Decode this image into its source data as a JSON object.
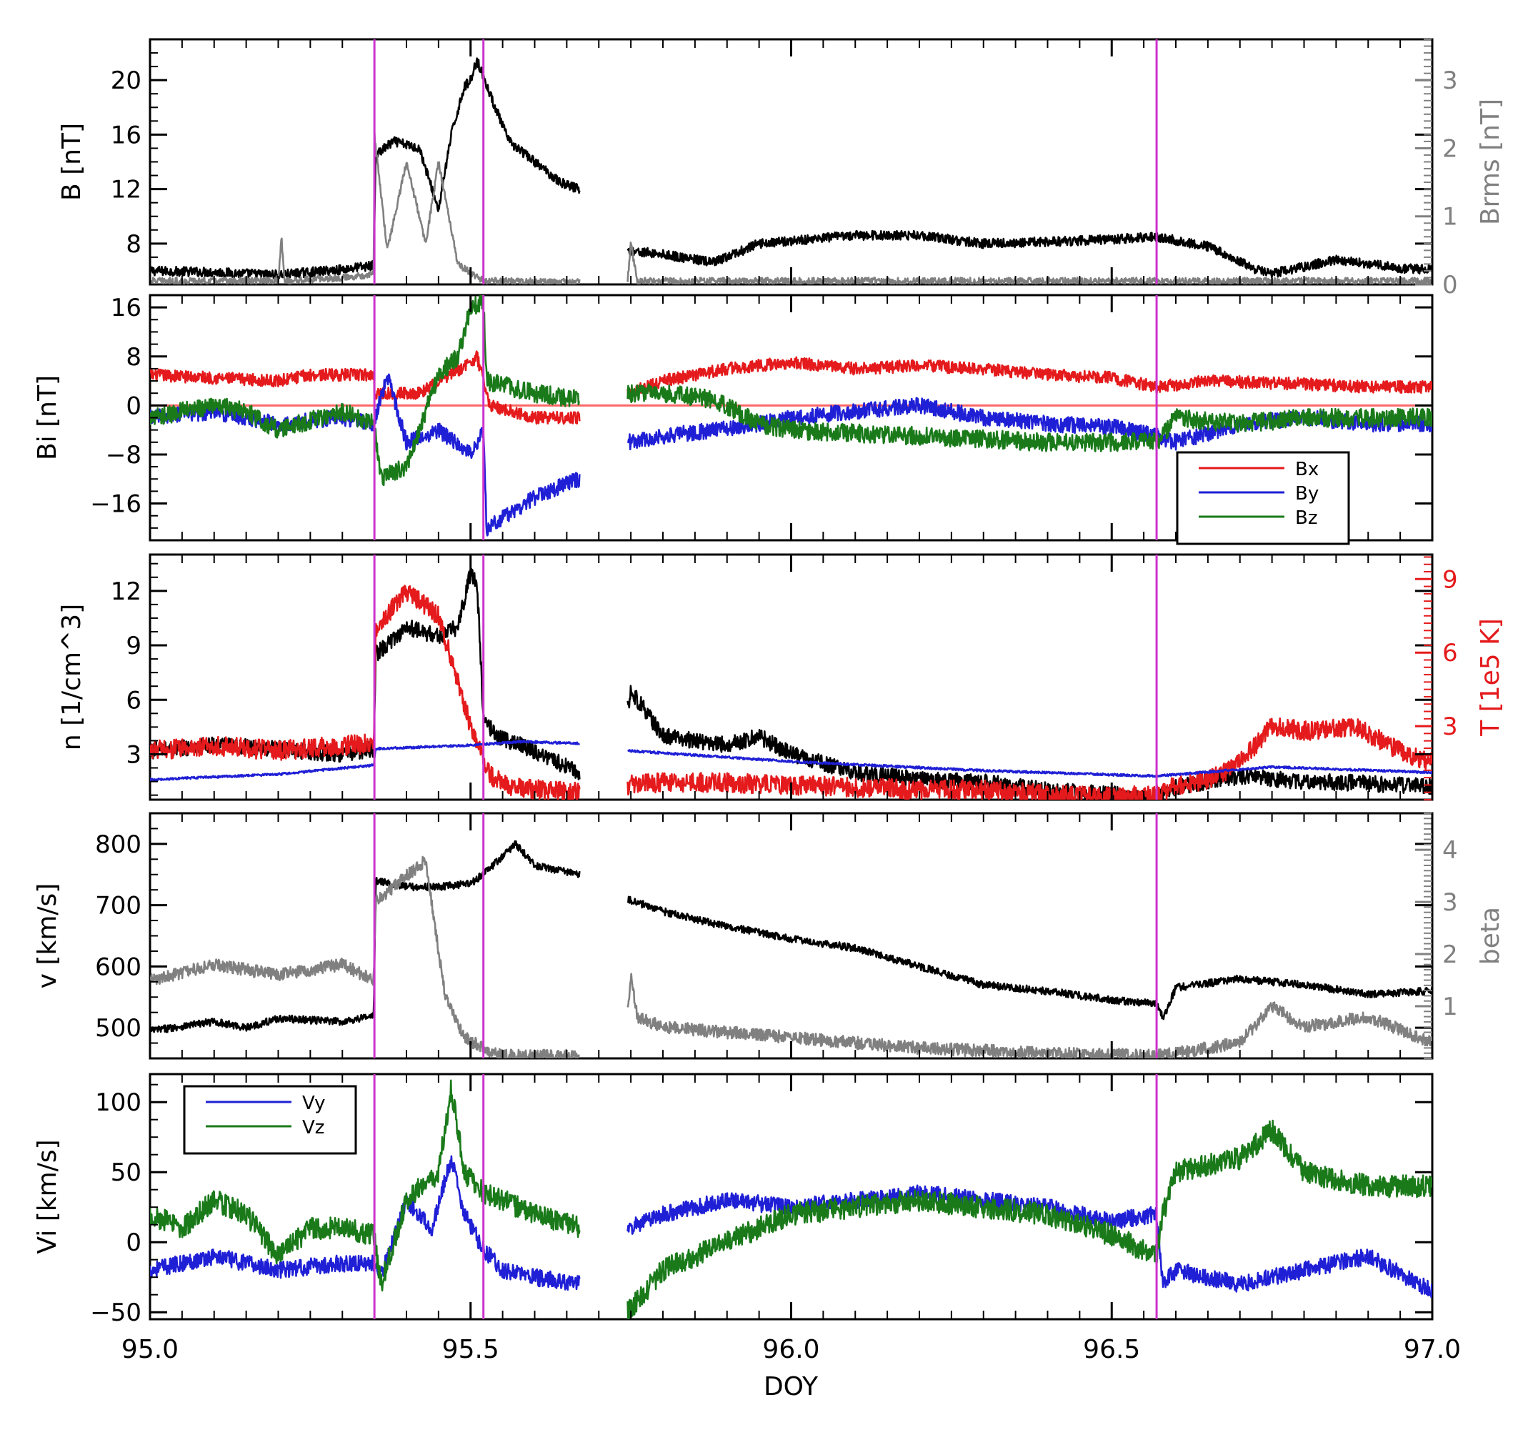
{
  "chart_data": {
    "type": "line",
    "xlabel": "DOY",
    "x_ticks": [
      "95.0",
      "95.5",
      "96.0",
      "96.5",
      "97.0"
    ],
    "xlim": [
      95.0,
      97.0
    ],
    "data_gap": [
      95.67,
      95.745
    ],
    "boundaries": [
      95.35,
      95.52,
      96.57
    ],
    "boundary_color": "#cc33cc",
    "panels": [
      {
        "ylabel": "B [nT]",
        "ylim": [
          5,
          23
        ],
        "y_ticks": [
          "8",
          "12",
          "16",
          "20"
        ],
        "right_axis": {
          "label": "Brms [nT]",
          "color": "#808080",
          "ylim": [
            0,
            3.6
          ],
          "ticks": [
            "0",
            "1",
            "2",
            "3"
          ]
        },
        "legend": null,
        "series": [
          {
            "color": "#000000",
            "axis": "left",
            "noise": 0.35,
            "x": [
              95.0,
              95.1,
              95.2,
              95.3,
              95.349,
              95.352,
              95.38,
              95.42,
              95.45,
              95.47,
              95.49,
              95.5,
              95.51,
              95.53,
              95.56,
              95.6,
              95.64,
              95.67,
              95.745,
              95.8,
              95.88,
              95.95,
              96.1,
              96.2,
              96.3,
              96.45,
              96.57,
              96.65,
              96.73,
              96.75,
              96.85,
              96.95,
              97.0
            ],
            "y": [
              6.0,
              5.9,
              5.7,
              6.1,
              6.4,
              14.5,
              15.5,
              15.0,
              10.5,
              16.0,
              19.5,
              20.0,
              21.5,
              19.0,
              15.5,
              14.0,
              12.5,
              12.0,
              7.5,
              7.2,
              6.6,
              8.0,
              8.6,
              8.6,
              8.0,
              8.2,
              8.5,
              7.8,
              6.0,
              5.8,
              6.8,
              6.2,
              6.1
            ]
          },
          {
            "color": "#808080",
            "axis": "right",
            "noise": 0.05,
            "x": [
              95.0,
              95.2,
              95.205,
              95.21,
              95.3,
              95.349,
              95.35,
              95.37,
              95.4,
              95.43,
              95.45,
              95.48,
              95.52,
              95.67,
              95.745,
              95.75,
              95.76,
              97.0
            ],
            "y": [
              0.05,
              0.05,
              0.7,
              0.05,
              0.1,
              0.15,
              2.2,
              0.5,
              1.8,
              0.6,
              1.8,
              0.3,
              0.05,
              0.03,
              0.05,
              0.6,
              0.05,
              0.05
            ]
          }
        ]
      },
      {
        "ylabel": "Bi [nT]",
        "ylim": [
          -22,
          18
        ],
        "y_ticks": [
          "-16",
          "-8",
          "0",
          "8",
          "16"
        ],
        "right_axis": null,
        "legend": {
          "position": "bottom-right",
          "entries": [
            {
              "label": "Bx",
              "color": "#e41a1c"
            },
            {
              "label": "By",
              "color": "#1f1fd6"
            },
            {
              "label": "Bz",
              "color": "#1a7a1a"
            }
          ]
        },
        "zero_line_color": "#ff6666",
        "series": [
          {
            "color": "#e41a1c",
            "noise": 1.0,
            "x": [
              95.0,
              95.1,
              95.2,
              95.25,
              95.349,
              95.35,
              95.42,
              95.5,
              95.51,
              95.53,
              95.6,
              95.67,
              95.745,
              95.8,
              95.9,
              96.0,
              96.1,
              96.2,
              96.3,
              96.4,
              96.5,
              96.57,
              96.65,
              96.8,
              96.9,
              97.0
            ],
            "y": [
              5.0,
              4.5,
              4.0,
              5.0,
              5.0,
              2.0,
              2.0,
              7.0,
              8.0,
              0.0,
              -2.0,
              -2.0,
              2.0,
              4.0,
              6.0,
              7.0,
              6.0,
              6.5,
              6.0,
              5.0,
              4.5,
              3.0,
              4.0,
              3.5,
              3.0,
              3.0
            ]
          },
          {
            "color": "#1f1fd6",
            "noise": 1.3,
            "x": [
              95.0,
              95.1,
              95.2,
              95.3,
              95.349,
              95.37,
              95.4,
              95.45,
              95.5,
              95.52,
              95.525,
              95.6,
              95.67,
              95.745,
              95.8,
              95.88,
              95.95,
              96.0,
              96.1,
              96.2,
              96.3,
              96.4,
              96.5,
              96.57,
              96.6,
              96.7,
              96.8,
              96.9,
              97.0
            ],
            "y": [
              -2.0,
              -1.0,
              -3.0,
              -2.0,
              -3.0,
              5.0,
              -6.0,
              -4.0,
              -8.0,
              -4.0,
              -20.0,
              -15.0,
              -12.0,
              -6.0,
              -5.0,
              -4.0,
              -3.0,
              -2.0,
              -1.0,
              0.0,
              -2.0,
              -3.0,
              -3.5,
              -5.0,
              -6.0,
              -3.0,
              -2.0,
              -3.0,
              -3.0
            ]
          },
          {
            "color": "#1a7a1a",
            "noise": 1.5,
            "x": [
              95.0,
              95.1,
              95.15,
              95.2,
              95.3,
              95.349,
              95.36,
              95.4,
              95.45,
              95.48,
              95.5,
              95.52,
              95.525,
              95.6,
              95.67,
              95.745,
              95.8,
              95.88,
              95.95,
              96.0,
              96.2,
              96.4,
              96.57,
              96.6,
              96.7,
              96.8,
              96.9,
              97.0
            ],
            "y": [
              -2.0,
              0.0,
              -1.0,
              -4.0,
              -1.0,
              -3.0,
              -12.0,
              -10.0,
              5.0,
              8.0,
              16.0,
              17.0,
              4.0,
              2.0,
              1.0,
              2.0,
              2.0,
              1.0,
              -3.0,
              -4.0,
              -5.0,
              -6.0,
              -6.0,
              -2.0,
              -3.0,
              -2.0,
              -2.0,
              -2.0
            ]
          }
        ]
      },
      {
        "ylabel": "n [1/cm^3]",
        "ylim": [
          0.5,
          14
        ],
        "y_ticks": [
          "3",
          "6",
          "9",
          "12"
        ],
        "right_axis": {
          "label": "T [1e5 K]",
          "color": "#e41a1c",
          "ylim": [
            0,
            10
          ],
          "ticks": [
            "3",
            "6",
            "9"
          ]
        },
        "legend": null,
        "series": [
          {
            "color": "#000000",
            "axis": "left",
            "noise": 0.45,
            "x": [
              95.0,
              95.1,
              95.2,
              95.3,
              95.349,
              95.352,
              95.4,
              95.45,
              95.48,
              95.5,
              95.51,
              95.52,
              95.54,
              95.58,
              95.67,
              95.745,
              95.75,
              95.8,
              95.9,
              95.95,
              96.0,
              96.1,
              96.2,
              96.3,
              96.4,
              96.5,
              96.57,
              96.6,
              96.7,
              96.8,
              96.9,
              97.0
            ],
            "y": [
              3.2,
              3.5,
              3.3,
              3.0,
              3.3,
              8.5,
              10.0,
              9.5,
              10.0,
              13.0,
              12.5,
              5.0,
              4.0,
              3.5,
              2.0,
              5.5,
              6.5,
              4.0,
              3.5,
              4.0,
              3.0,
              2.0,
              1.6,
              1.5,
              1.0,
              0.8,
              0.6,
              1.2,
              1.8,
              1.5,
              1.4,
              1.2
            ]
          },
          {
            "color": "#e41a1c",
            "axis": "right",
            "noise": 0.4,
            "x": [
              95.0,
              95.1,
              95.2,
              95.3,
              95.349,
              95.352,
              95.4,
              95.45,
              95.5,
              95.53,
              95.56,
              95.67,
              95.745,
              95.8,
              95.9,
              96.0,
              96.1,
              96.2,
              96.3,
              96.4,
              96.5,
              96.57,
              96.6,
              96.65,
              96.7,
              96.75,
              96.8,
              96.88,
              96.95,
              97.0
            ],
            "y": [
              2.0,
              2.2,
              2.0,
              2.2,
              2.3,
              7.0,
              8.5,
              7.5,
              3.0,
              1.0,
              0.5,
              0.3,
              0.6,
              0.7,
              0.7,
              0.6,
              0.5,
              0.4,
              0.4,
              0.2,
              0.1,
              0.2,
              0.6,
              0.8,
              1.5,
              3.0,
              2.8,
              3.0,
              2.0,
              1.5
            ]
          },
          {
            "color": "#1f1fd6",
            "axis": "left",
            "noise": 0.06,
            "x": [
              95.0,
              95.2,
              95.349,
              95.352,
              95.5,
              95.58,
              95.67,
              95.745,
              96.0,
              96.3,
              96.57,
              96.75,
              97.0
            ],
            "y": [
              1.6,
              1.9,
              2.4,
              3.3,
              3.5,
              3.7,
              3.6,
              3.2,
              2.6,
              2.1,
              1.8,
              2.3,
              2.0
            ]
          }
        ]
      },
      {
        "ylabel": "v [km/s]",
        "ylim": [
          450,
          850
        ],
        "y_ticks": [
          "500",
          "600",
          "700",
          "800"
        ],
        "right_axis": {
          "label": "beta",
          "color": "#808080",
          "ylim": [
            0,
            4.7
          ],
          "ticks": [
            "1",
            "2",
            "3",
            "4"
          ]
        },
        "legend": null,
        "series": [
          {
            "color": "#000000",
            "axis": "left",
            "noise": 6,
            "x": [
              95.0,
              95.1,
              95.15,
              95.2,
              95.3,
              95.349,
              95.352,
              95.4,
              95.45,
              95.5,
              95.53,
              95.57,
              95.6,
              95.67,
              95.745,
              95.8,
              95.9,
              96.0,
              96.1,
              96.2,
              96.3,
              96.4,
              96.5,
              96.57,
              96.58,
              96.6,
              96.7,
              96.8,
              96.9,
              97.0
            ],
            "y": [
              495,
              510,
              500,
              515,
              510,
              520,
              740,
              730,
              730,
              735,
              760,
              800,
              765,
              750,
              710,
              690,
              665,
              645,
              630,
              600,
              570,
              560,
              545,
              540,
              515,
              565,
              580,
              570,
              555,
              560
            ]
          },
          {
            "color": "#808080",
            "axis": "right",
            "noise": 0.12,
            "x": [
              95.0,
              95.1,
              95.2,
              95.3,
              95.349,
              95.352,
              95.4,
              95.43,
              95.46,
              95.49,
              95.52,
              95.55,
              95.67,
              95.745,
              95.75,
              95.76,
              95.8,
              95.9,
              96.0,
              96.2,
              96.4,
              96.57,
              96.6,
              96.7,
              96.75,
              96.8,
              96.9,
              97.0
            ],
            "y": [
              1.5,
              1.8,
              1.6,
              1.8,
              1.5,
              3.0,
              3.5,
              3.8,
              1.2,
              0.4,
              0.2,
              0.05,
              0.05,
              0.9,
              1.6,
              0.8,
              0.6,
              0.5,
              0.4,
              0.2,
              0.1,
              0.05,
              0.1,
              0.3,
              1.0,
              0.6,
              0.8,
              0.3
            ]
          }
        ]
      },
      {
        "ylabel": "Vi [km/s]",
        "ylim": [
          -55,
          120
        ],
        "y_ticks": [
          "-50",
          "0",
          "50",
          "100"
        ],
        "right_axis": null,
        "legend": {
          "position": "top-left",
          "entries": [
            {
              "label": "Vy",
              "color": "#1f1fd6"
            },
            {
              "label": "Vz",
              "color": "#1a7a1a"
            }
          ]
        },
        "series": [
          {
            "color": "#1f1fd6",
            "noise": 6,
            "x": [
              95.0,
              95.1,
              95.2,
              95.3,
              95.349,
              95.36,
              95.4,
              95.44,
              95.47,
              95.49,
              95.52,
              95.55,
              95.6,
              95.67,
              95.745,
              95.8,
              95.9,
              96.0,
              96.1,
              96.2,
              96.3,
              96.4,
              96.5,
              96.57,
              96.58,
              96.6,
              96.7,
              96.8,
              96.9,
              97.0
            ],
            "y": [
              -20,
              -10,
              -20,
              -15,
              -15,
              -25,
              30,
              10,
              60,
              20,
              -5,
              -20,
              -25,
              -30,
              10,
              20,
              30,
              25,
              30,
              35,
              30,
              25,
              15,
              20,
              -30,
              -20,
              -30,
              -20,
              -10,
              -35
            ]
          },
          {
            "color": "#1a7a1a",
            "noise": 8,
            "x": [
              95.0,
              95.05,
              95.1,
              95.15,
              95.2,
              95.25,
              95.3,
              95.349,
              95.36,
              95.4,
              95.45,
              95.47,
              95.49,
              95.52,
              95.55,
              95.6,
              95.67,
              95.745,
              95.8,
              95.9,
              96.0,
              96.1,
              96.2,
              96.3,
              96.4,
              96.5,
              96.57,
              96.58,
              96.6,
              96.7,
              96.75,
              96.8,
              96.9,
              97.0
            ],
            "y": [
              20,
              10,
              30,
              20,
              -10,
              10,
              10,
              5,
              -30,
              30,
              50,
              110,
              50,
              35,
              30,
              20,
              10,
              -50,
              -20,
              0,
              20,
              25,
              30,
              25,
              20,
              5,
              -10,
              20,
              50,
              60,
              80,
              50,
              40,
              40
            ]
          }
        ]
      }
    ]
  }
}
